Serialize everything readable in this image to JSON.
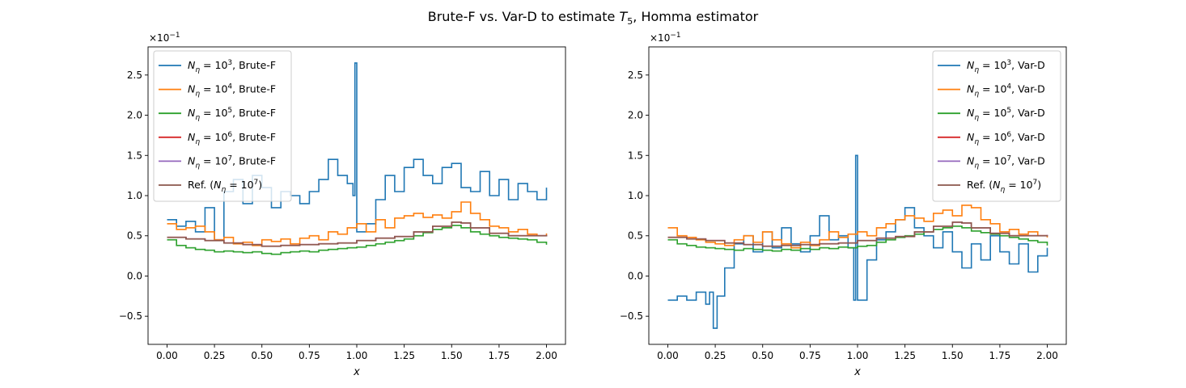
{
  "figure": {
    "title_prefix": "Brute-F vs. Var-D to estimate ",
    "title_symbol": "T",
    "title_subscript": "5",
    "title_suffix": ", Homma estimator"
  },
  "chart_data": [
    {
      "type": "line",
      "step": true,
      "xlabel": "x",
      "ylabel": "",
      "y_multiplier": "×10",
      "y_multiplier_exponent": "−1",
      "xlim": [
        -0.1,
        2.1
      ],
      "ylim": [
        -0.85,
        2.85
      ],
      "x_ticks": [
        0.0,
        0.25,
        0.5,
        0.75,
        1.0,
        1.25,
        1.5,
        1.75,
        2.0
      ],
      "x_tick_labels": [
        "0.00",
        "0.25",
        "0.50",
        "0.75",
        "1.00",
        "1.25",
        "1.50",
        "1.75",
        "2.00"
      ],
      "y_ticks": [
        -0.5,
        0.0,
        0.5,
        1.0,
        1.5,
        2.0,
        2.5
      ],
      "y_tick_labels": [
        "−0.5",
        "0.0",
        "0.5",
        "1.0",
        "1.5",
        "2.0",
        "2.5"
      ],
      "legend_position": "top-left",
      "series": [
        {
          "name_prefix": "N",
          "name_sub": "η",
          "name_mid": " = 10",
          "name_sup": "3",
          "name_suffix": ", Brute-F",
          "color": "#1f77b4",
          "x": [
            0.0,
            0.05,
            0.1,
            0.15,
            0.2,
            0.25,
            0.3,
            0.35,
            0.4,
            0.45,
            0.5,
            0.55,
            0.6,
            0.65,
            0.7,
            0.75,
            0.8,
            0.85,
            0.9,
            0.95,
            0.98,
            0.99,
            1.0,
            1.05,
            1.1,
            1.15,
            1.2,
            1.25,
            1.3,
            1.35,
            1.4,
            1.45,
            1.5,
            1.55,
            1.6,
            1.65,
            1.7,
            1.75,
            1.8,
            1.85,
            1.9,
            1.95,
            2.0
          ],
          "y": [
            0.7,
            0.62,
            0.68,
            0.55,
            0.85,
            0.45,
            1.05,
            1.2,
            0.9,
            1.25,
            1.1,
            0.85,
            1.05,
            1.0,
            0.9,
            1.05,
            1.2,
            1.45,
            1.25,
            1.15,
            1.0,
            2.65,
            0.55,
            0.65,
            0.95,
            1.25,
            1.05,
            1.35,
            1.45,
            1.25,
            1.15,
            1.35,
            1.4,
            1.1,
            1.05,
            1.3,
            1.0,
            1.2,
            0.95,
            1.15,
            1.05,
            0.95,
            1.1
          ]
        },
        {
          "name_prefix": "N",
          "name_sub": "η",
          "name_mid": " = 10",
          "name_sup": "4",
          "name_suffix": ", Brute-F",
          "color": "#ff7f0e",
          "x": [
            0.0,
            0.05,
            0.1,
            0.15,
            0.2,
            0.25,
            0.3,
            0.35,
            0.4,
            0.45,
            0.5,
            0.55,
            0.6,
            0.65,
            0.7,
            0.75,
            0.8,
            0.85,
            0.9,
            0.95,
            1.0,
            1.05,
            1.1,
            1.15,
            1.2,
            1.25,
            1.3,
            1.35,
            1.4,
            1.45,
            1.5,
            1.55,
            1.6,
            1.65,
            1.7,
            1.75,
            1.8,
            1.85,
            1.9,
            1.95,
            2.0
          ],
          "y": [
            0.65,
            0.58,
            0.6,
            0.62,
            0.55,
            0.45,
            0.48,
            0.4,
            0.42,
            0.38,
            0.45,
            0.43,
            0.46,
            0.4,
            0.47,
            0.5,
            0.45,
            0.55,
            0.52,
            0.6,
            0.65,
            0.55,
            0.7,
            0.6,
            0.72,
            0.75,
            0.78,
            0.73,
            0.76,
            0.72,
            0.8,
            0.92,
            0.78,
            0.7,
            0.62,
            0.6,
            0.55,
            0.58,
            0.52,
            0.5,
            0.53
          ]
        },
        {
          "name_prefix": "N",
          "name_sub": "η",
          "name_mid": " = 10",
          "name_sup": "5",
          "name_suffix": ", Brute-F",
          "color": "#2ca02c",
          "x": [
            0.0,
            0.05,
            0.1,
            0.15,
            0.2,
            0.25,
            0.3,
            0.35,
            0.4,
            0.45,
            0.5,
            0.55,
            0.6,
            0.65,
            0.7,
            0.75,
            0.8,
            0.85,
            0.9,
            0.95,
            1.0,
            1.05,
            1.1,
            1.15,
            1.2,
            1.25,
            1.3,
            1.35,
            1.4,
            1.45,
            1.5,
            1.55,
            1.6,
            1.65,
            1.7,
            1.75,
            1.8,
            1.85,
            1.9,
            1.95,
            2.0
          ],
          "y": [
            0.45,
            0.38,
            0.35,
            0.33,
            0.32,
            0.3,
            0.31,
            0.3,
            0.29,
            0.3,
            0.28,
            0.27,
            0.29,
            0.3,
            0.31,
            0.3,
            0.32,
            0.33,
            0.34,
            0.35,
            0.36,
            0.38,
            0.4,
            0.42,
            0.44,
            0.46,
            0.5,
            0.54,
            0.58,
            0.6,
            0.63,
            0.6,
            0.55,
            0.52,
            0.5,
            0.48,
            0.47,
            0.46,
            0.45,
            0.42,
            0.39
          ]
        },
        {
          "name_prefix": "N",
          "name_sub": "η",
          "name_mid": " = 10",
          "name_sup": "6",
          "name_suffix": ", Brute-F",
          "color": "#d62728",
          "x": [
            0.0,
            0.1,
            0.2,
            0.3,
            0.4,
            0.5,
            0.6,
            0.7,
            0.8,
            0.9,
            1.0,
            1.1,
            1.2,
            1.3,
            1.4,
            1.5,
            1.55,
            1.6,
            1.7,
            1.8,
            1.9,
            2.0
          ],
          "y": [
            0.48,
            0.46,
            0.44,
            0.41,
            0.39,
            0.37,
            0.38,
            0.39,
            0.4,
            0.41,
            0.44,
            0.47,
            0.49,
            0.55,
            0.62,
            0.67,
            0.66,
            0.6,
            0.53,
            0.5,
            0.5,
            0.51
          ]
        },
        {
          "name_prefix": "N",
          "name_sub": "η",
          "name_mid": " = 10",
          "name_sup": "7",
          "name_suffix": ", Brute-F",
          "color": "#9467bd",
          "x": [
            0.0,
            0.1,
            0.2,
            0.3,
            0.4,
            0.5,
            0.6,
            0.7,
            0.8,
            0.9,
            1.0,
            1.1,
            1.2,
            1.3,
            1.4,
            1.5,
            1.55,
            1.6,
            1.7,
            1.8,
            1.9,
            2.0
          ],
          "y": [
            0.48,
            0.46,
            0.44,
            0.41,
            0.39,
            0.37,
            0.38,
            0.39,
            0.4,
            0.41,
            0.44,
            0.47,
            0.49,
            0.55,
            0.62,
            0.67,
            0.66,
            0.6,
            0.53,
            0.5,
            0.5,
            0.51
          ]
        },
        {
          "name_prefix": "Ref. (N",
          "name_sub": "η",
          "name_mid": " = 10",
          "name_sup": "7",
          "name_suffix": ")",
          "color": "#8c564b",
          "x": [
            0.0,
            0.1,
            0.2,
            0.3,
            0.4,
            0.5,
            0.6,
            0.7,
            0.8,
            0.9,
            1.0,
            1.1,
            1.2,
            1.3,
            1.4,
            1.5,
            1.55,
            1.6,
            1.7,
            1.8,
            1.9,
            2.0
          ],
          "y": [
            0.48,
            0.46,
            0.44,
            0.41,
            0.39,
            0.37,
            0.38,
            0.39,
            0.4,
            0.41,
            0.44,
            0.47,
            0.49,
            0.55,
            0.62,
            0.67,
            0.66,
            0.6,
            0.53,
            0.5,
            0.5,
            0.51
          ]
        }
      ]
    },
    {
      "type": "line",
      "step": true,
      "xlabel": "x",
      "ylabel": "",
      "y_multiplier": "×10",
      "y_multiplier_exponent": "−1",
      "xlim": [
        -0.1,
        2.1
      ],
      "ylim": [
        -0.85,
        2.85
      ],
      "x_ticks": [
        0.0,
        0.25,
        0.5,
        0.75,
        1.0,
        1.25,
        1.5,
        1.75,
        2.0
      ],
      "x_tick_labels": [
        "0.00",
        "0.25",
        "0.50",
        "0.75",
        "1.00",
        "1.25",
        "1.50",
        "1.75",
        "2.00"
      ],
      "y_ticks": [
        -0.5,
        0.0,
        0.5,
        1.0,
        1.5,
        2.0,
        2.5
      ],
      "y_tick_labels": [
        "−0.5",
        "0.0",
        "0.5",
        "1.0",
        "1.5",
        "2.0",
        "2.5"
      ],
      "legend_position": "top-right",
      "series": [
        {
          "name_prefix": "N",
          "name_sub": "η",
          "name_mid": " = 10",
          "name_sup": "3",
          "name_suffix": ", Var-D",
          "color": "#1f77b4",
          "x": [
            0.0,
            0.05,
            0.1,
            0.15,
            0.2,
            0.22,
            0.24,
            0.26,
            0.3,
            0.35,
            0.4,
            0.45,
            0.5,
            0.55,
            0.6,
            0.65,
            0.7,
            0.75,
            0.8,
            0.85,
            0.9,
            0.95,
            0.98,
            0.99,
            1.0,
            1.05,
            1.1,
            1.15,
            1.2,
            1.25,
            1.3,
            1.35,
            1.4,
            1.45,
            1.5,
            1.55,
            1.6,
            1.65,
            1.7,
            1.75,
            1.8,
            1.85,
            1.9,
            1.95,
            2.0
          ],
          "y": [
            -0.3,
            -0.25,
            -0.3,
            -0.2,
            -0.35,
            -0.2,
            -0.65,
            -0.25,
            0.1,
            0.4,
            0.5,
            0.3,
            0.55,
            0.35,
            0.6,
            0.4,
            0.3,
            0.5,
            0.75,
            0.45,
            0.5,
            0.35,
            -0.3,
            1.5,
            -0.3,
            0.2,
            0.45,
            0.55,
            0.7,
            0.85,
            0.6,
            0.5,
            0.35,
            0.55,
            0.3,
            0.1,
            0.4,
            0.2,
            0.5,
            0.3,
            0.15,
            0.4,
            0.05,
            0.25,
            0.35
          ]
        },
        {
          "name_prefix": "N",
          "name_sub": "η",
          "name_mid": " = 10",
          "name_sup": "4",
          "name_suffix": ", Var-D",
          "color": "#ff7f0e",
          "x": [
            0.0,
            0.05,
            0.1,
            0.15,
            0.2,
            0.25,
            0.3,
            0.35,
            0.4,
            0.45,
            0.5,
            0.55,
            0.6,
            0.65,
            0.7,
            0.75,
            0.8,
            0.85,
            0.9,
            0.95,
            1.0,
            1.05,
            1.1,
            1.15,
            1.2,
            1.25,
            1.3,
            1.35,
            1.4,
            1.45,
            1.5,
            1.55,
            1.6,
            1.65,
            1.7,
            1.75,
            1.8,
            1.85,
            1.9,
            1.95,
            2.0
          ],
          "y": [
            0.6,
            0.5,
            0.48,
            0.45,
            0.42,
            0.4,
            0.38,
            0.45,
            0.5,
            0.42,
            0.55,
            0.45,
            0.4,
            0.35,
            0.42,
            0.38,
            0.45,
            0.55,
            0.48,
            0.52,
            0.55,
            0.5,
            0.6,
            0.65,
            0.7,
            0.75,
            0.72,
            0.68,
            0.78,
            0.82,
            0.75,
            0.88,
            0.85,
            0.7,
            0.65,
            0.55,
            0.58,
            0.52,
            0.55,
            0.5,
            0.48
          ]
        },
        {
          "name_prefix": "N",
          "name_sub": "η",
          "name_mid": " = 10",
          "name_sup": "5",
          "name_suffix": ", Var-D",
          "color": "#2ca02c",
          "x": [
            0.0,
            0.05,
            0.1,
            0.15,
            0.2,
            0.25,
            0.3,
            0.35,
            0.4,
            0.45,
            0.5,
            0.55,
            0.6,
            0.65,
            0.7,
            0.75,
            0.8,
            0.85,
            0.9,
            0.95,
            1.0,
            1.05,
            1.1,
            1.15,
            1.2,
            1.25,
            1.3,
            1.35,
            1.4,
            1.45,
            1.5,
            1.55,
            1.6,
            1.65,
            1.7,
            1.75,
            1.8,
            1.85,
            1.9,
            1.95,
            2.0
          ],
          "y": [
            0.45,
            0.4,
            0.38,
            0.36,
            0.35,
            0.34,
            0.33,
            0.32,
            0.34,
            0.33,
            0.32,
            0.31,
            0.33,
            0.32,
            0.34,
            0.33,
            0.35,
            0.34,
            0.36,
            0.35,
            0.37,
            0.38,
            0.42,
            0.45,
            0.48,
            0.5,
            0.52,
            0.55,
            0.58,
            0.6,
            0.62,
            0.6,
            0.56,
            0.54,
            0.52,
            0.5,
            0.48,
            0.46,
            0.44,
            0.42,
            0.38
          ]
        },
        {
          "name_prefix": "N",
          "name_sub": "η",
          "name_mid": " = 10",
          "name_sup": "6",
          "name_suffix": ", Var-D",
          "color": "#d62728",
          "x": [
            0.0,
            0.1,
            0.2,
            0.3,
            0.4,
            0.5,
            0.6,
            0.7,
            0.8,
            0.9,
            1.0,
            1.1,
            1.2,
            1.3,
            1.4,
            1.5,
            1.55,
            1.6,
            1.7,
            1.8,
            1.9,
            2.0
          ],
          "y": [
            0.48,
            0.46,
            0.44,
            0.41,
            0.39,
            0.37,
            0.38,
            0.39,
            0.4,
            0.41,
            0.44,
            0.47,
            0.49,
            0.55,
            0.62,
            0.67,
            0.66,
            0.6,
            0.53,
            0.5,
            0.5,
            0.51
          ]
        },
        {
          "name_prefix": "N",
          "name_sub": "η",
          "name_mid": " = 10",
          "name_sup": "7",
          "name_suffix": ", Var-D",
          "color": "#9467bd",
          "x": [
            0.0,
            0.1,
            0.2,
            0.3,
            0.4,
            0.5,
            0.6,
            0.7,
            0.8,
            0.9,
            1.0,
            1.1,
            1.2,
            1.3,
            1.4,
            1.5,
            1.55,
            1.6,
            1.7,
            1.8,
            1.9,
            2.0
          ],
          "y": [
            0.48,
            0.46,
            0.44,
            0.41,
            0.39,
            0.37,
            0.38,
            0.39,
            0.4,
            0.41,
            0.44,
            0.47,
            0.49,
            0.55,
            0.62,
            0.67,
            0.66,
            0.6,
            0.53,
            0.5,
            0.5,
            0.51
          ]
        },
        {
          "name_prefix": "Ref. (N",
          "name_sub": "η",
          "name_mid": " = 10",
          "name_sup": "7",
          "name_suffix": ")",
          "color": "#8c564b",
          "x": [
            0.0,
            0.1,
            0.2,
            0.3,
            0.4,
            0.5,
            0.6,
            0.7,
            0.8,
            0.9,
            1.0,
            1.1,
            1.2,
            1.3,
            1.4,
            1.5,
            1.55,
            1.6,
            1.7,
            1.8,
            1.9,
            2.0
          ],
          "y": [
            0.48,
            0.46,
            0.44,
            0.41,
            0.39,
            0.37,
            0.38,
            0.39,
            0.4,
            0.41,
            0.44,
            0.47,
            0.49,
            0.55,
            0.62,
            0.67,
            0.66,
            0.6,
            0.53,
            0.5,
            0.5,
            0.51
          ]
        }
      ]
    }
  ]
}
